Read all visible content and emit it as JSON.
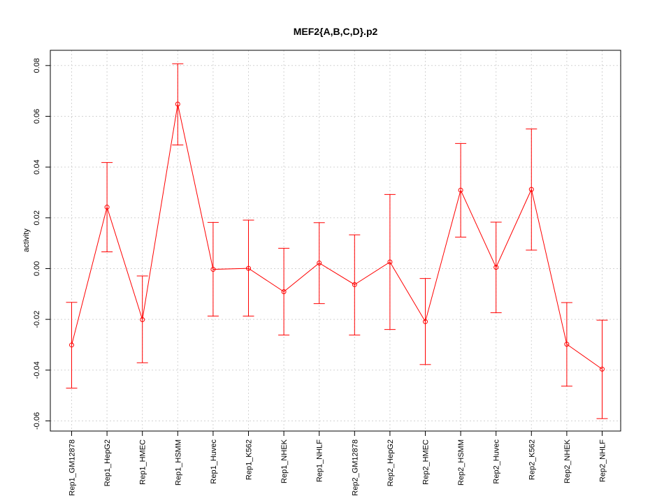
{
  "chart_data": {
    "type": "line",
    "title": "MEF2{A,B,C,D}.p2",
    "xlabel": "",
    "ylabel": "activity",
    "grid": true,
    "ylim": [
      -0.064,
      0.086
    ],
    "yticks": [
      -0.06,
      -0.04,
      -0.02,
      0.0,
      0.02,
      0.04,
      0.06,
      0.08
    ],
    "ytick_labels": [
      "-0.06",
      "-0.04",
      "-0.02",
      "0.00",
      "0.02",
      "0.04",
      "0.06",
      "0.08"
    ],
    "categories": [
      "Rep1_GM12878",
      "Rep1_HepG2",
      "Rep1_HMEC",
      "Rep1_HSMM",
      "Rep1_Huvec",
      "Rep1_K562",
      "Rep1_NHEK",
      "Rep1_NHLF",
      "Rep2_GM12878",
      "Rep2_HepG2",
      "Rep2_HMEC",
      "Rep2_HSMM",
      "Rep2_Huvec",
      "Rep2_K562",
      "Rep2_NHEK",
      "Rep2_NHLF"
    ],
    "series": [
      {
        "name": "activity",
        "color": "#ff0000",
        "values": [
          -0.0301,
          0.0242,
          -0.0201,
          0.0648,
          -0.0003,
          0.0001,
          -0.0091,
          0.0022,
          -0.0063,
          0.0026,
          -0.0209,
          0.0309,
          0.0005,
          0.0312,
          -0.0298,
          -0.0396
        ],
        "lower": [
          -0.0471,
          0.0066,
          -0.0371,
          0.0487,
          -0.0187,
          -0.0187,
          -0.0262,
          -0.0138,
          -0.0262,
          -0.024,
          -0.0378,
          0.0124,
          -0.0174,
          0.0073,
          -0.0463,
          -0.0591
        ],
        "upper": [
          -0.0133,
          0.0418,
          -0.0029,
          0.0807,
          0.0182,
          0.0191,
          0.008,
          0.0181,
          0.0133,
          0.0292,
          -0.0039,
          0.0493,
          0.0183,
          0.055,
          -0.0134,
          -0.0203
        ]
      }
    ]
  }
}
